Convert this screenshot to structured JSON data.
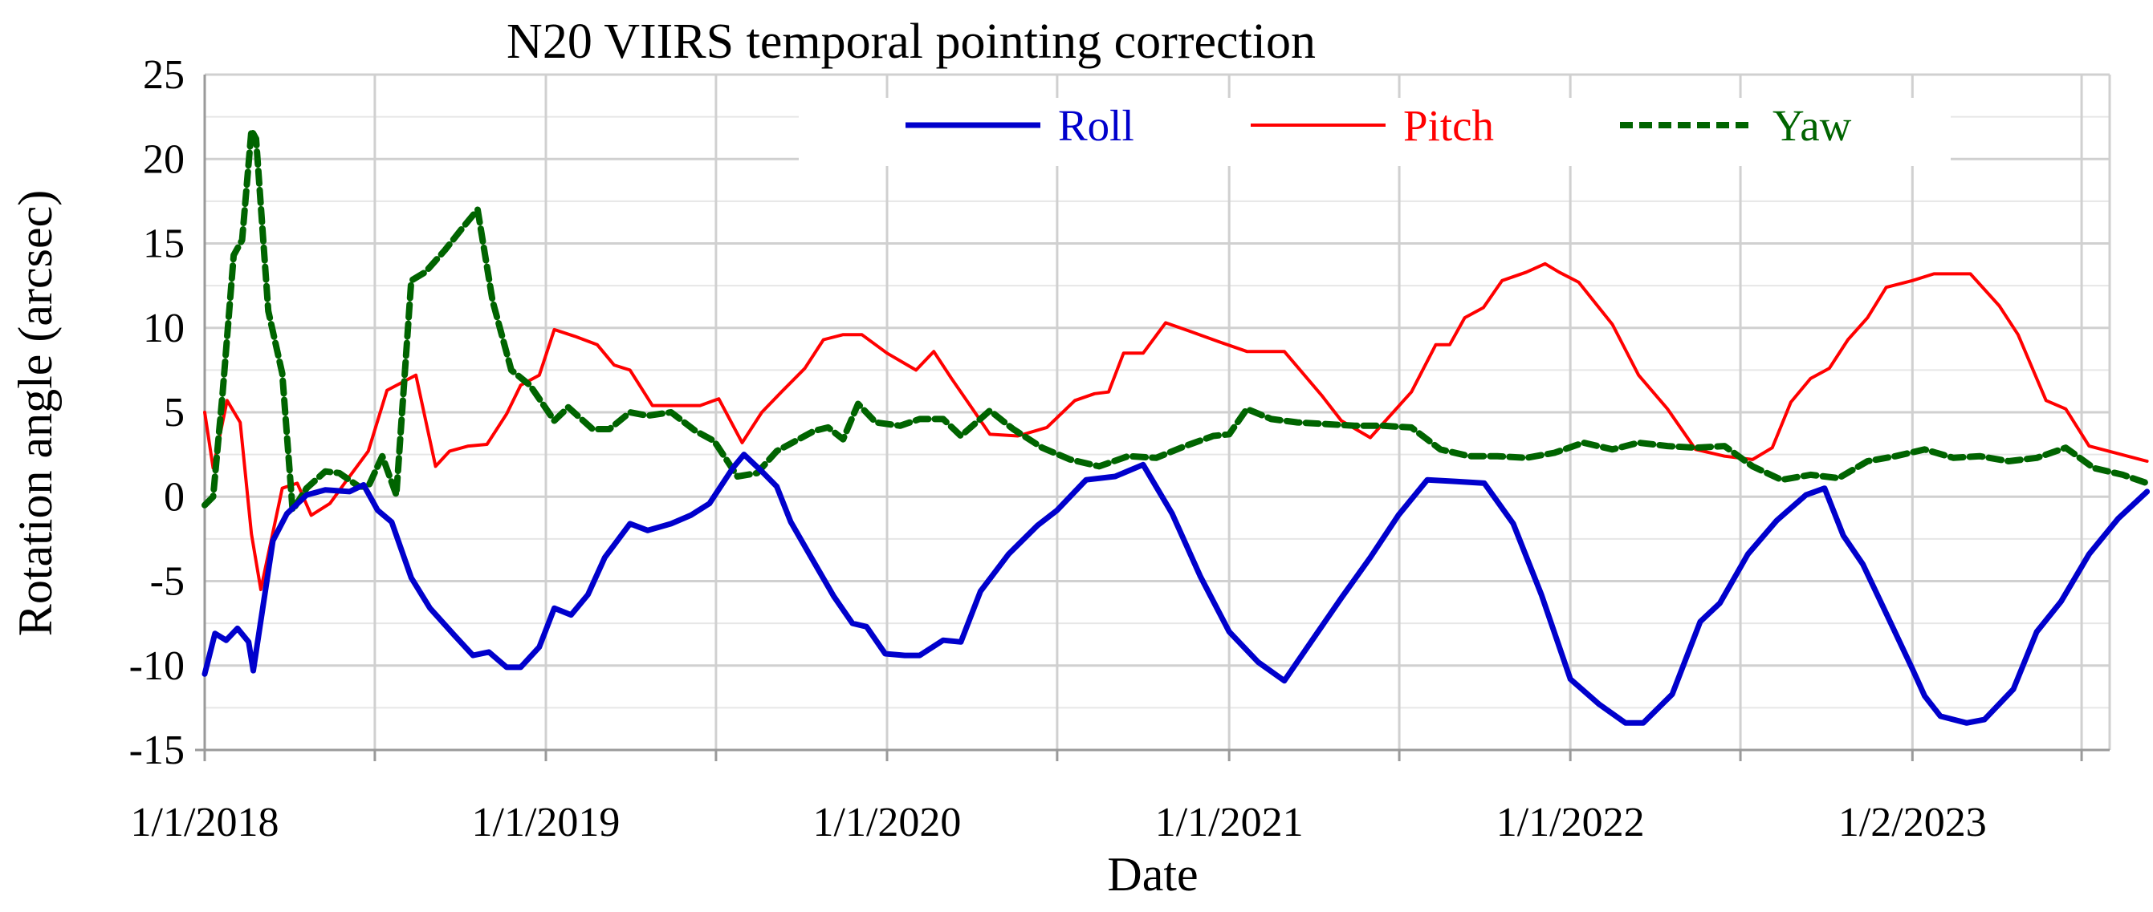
{
  "chart_data": {
    "type": "line",
    "title": "N20 VIIRS temporal pointing correction",
    "xlabel": "Date",
    "ylabel": "Rotation angle (arcsec)",
    "x_tick_labels": [
      "1/1/2018",
      "1/1/2019",
      "1/1/2020",
      "1/1/2021",
      "1/1/2022",
      "1/2/2023"
    ],
    "x_tick_dates": [
      "2018-01-01",
      "2019-01-01",
      "2020-01-01",
      "2021-01-01",
      "2022-01-01",
      "2023-01-02"
    ],
    "xlim": [
      "2018-01-01",
      "2023-07-20"
    ],
    "ylim": [
      -15,
      25
    ],
    "y_ticks": [
      -15,
      -10,
      -5,
      0,
      5,
      10,
      15,
      20,
      25
    ],
    "grid": true,
    "legend": "top, inside",
    "series": [
      {
        "name": "Roll",
        "color": "#0000CC",
        "style": "solid-thick",
        "points": [
          [
            "2018-01-01",
            -10.5
          ],
          [
            "2018-01-12",
            -8.1
          ],
          [
            "2018-01-24",
            -8.5
          ],
          [
            "2018-02-05",
            -7.8
          ],
          [
            "2018-02-17",
            -8.6
          ],
          [
            "2018-02-22",
            -10.3
          ],
          [
            "2018-03-15",
            -2.6
          ],
          [
            "2018-03-30",
            -1.0
          ],
          [
            "2018-04-20",
            0.1
          ],
          [
            "2018-05-10",
            0.4
          ],
          [
            "2018-06-05",
            0.3
          ],
          [
            "2018-06-20",
            0.7
          ],
          [
            "2018-07-05",
            -0.8
          ],
          [
            "2018-07-20",
            -1.5
          ],
          [
            "2018-08-10",
            -4.8
          ],
          [
            "2018-08-30",
            -6.6
          ],
          [
            "2018-09-25",
            -8.2
          ],
          [
            "2018-10-15",
            -9.4
          ],
          [
            "2018-11-01",
            -9.2
          ],
          [
            "2018-11-20",
            -10.1
          ],
          [
            "2018-12-05",
            -10.1
          ],
          [
            "2018-12-25",
            -8.9
          ],
          [
            "2019-01-10",
            -6.6
          ],
          [
            "2019-01-28",
            -7.0
          ],
          [
            "2019-02-15",
            -5.8
          ],
          [
            "2019-03-05",
            -3.6
          ],
          [
            "2019-04-01",
            -1.6
          ],
          [
            "2019-04-20",
            -2.0
          ],
          [
            "2019-05-15",
            -1.6
          ],
          [
            "2019-06-05",
            -1.1
          ],
          [
            "2019-06-25",
            -0.4
          ],
          [
            "2019-07-20",
            1.7
          ],
          [
            "2019-08-01",
            2.5
          ],
          [
            "2019-08-20",
            1.5
          ],
          [
            "2019-09-05",
            0.6
          ],
          [
            "2019-09-20",
            -1.5
          ],
          [
            "2019-10-15",
            -3.9
          ],
          [
            "2019-11-05",
            -5.9
          ],
          [
            "2019-11-25",
            -7.5
          ],
          [
            "2019-12-10",
            -7.7
          ],
          [
            "2019-12-30",
            -9.3
          ],
          [
            "2020-01-20",
            -9.4
          ],
          [
            "2020-02-05",
            -9.4
          ],
          [
            "2020-03-01",
            -8.5
          ],
          [
            "2020-03-20",
            -8.6
          ],
          [
            "2020-04-10",
            -5.6
          ],
          [
            "2020-05-10",
            -3.4
          ],
          [
            "2020-06-10",
            -1.7
          ],
          [
            "2020-07-01",
            -0.8
          ],
          [
            "2020-08-01",
            1.0
          ],
          [
            "2020-09-01",
            1.2
          ],
          [
            "2020-10-01",
            1.9
          ],
          [
            "2020-11-01",
            -1.0
          ],
          [
            "2020-12-01",
            -4.7
          ],
          [
            "2021-01-01",
            -8.0
          ],
          [
            "2021-02-01",
            -9.8
          ],
          [
            "2021-03-01",
            -10.9
          ],
          [
            "2021-04-01",
            -8.4
          ],
          [
            "2021-05-01",
            -6.0
          ],
          [
            "2021-06-01",
            -3.6
          ],
          [
            "2021-07-01",
            -1.1
          ],
          [
            "2021-08-01",
            1.0
          ],
          [
            "2021-09-01",
            0.9
          ],
          [
            "2021-10-01",
            0.8
          ],
          [
            "2021-11-01",
            -1.6
          ],
          [
            "2021-12-01",
            -5.8
          ],
          [
            "2022-01-01",
            -10.8
          ],
          [
            "2022-02-01",
            -12.3
          ],
          [
            "2022-03-01",
            -13.4
          ],
          [
            "2022-03-20",
            -13.4
          ],
          [
            "2022-04-20",
            -11.7
          ],
          [
            "2022-05-20",
            -7.4
          ],
          [
            "2022-06-10",
            -6.3
          ],
          [
            "2022-07-10",
            -3.4
          ],
          [
            "2022-08-10",
            -1.4
          ],
          [
            "2022-09-10",
            0.1
          ],
          [
            "2022-09-30",
            0.5
          ],
          [
            "2022-10-20",
            -2.3
          ],
          [
            "2022-11-10",
            -4.0
          ],
          [
            "2022-12-10",
            -7.5
          ],
          [
            "2023-01-02",
            -10.2
          ],
          [
            "2023-01-15",
            -11.8
          ],
          [
            "2023-02-01",
            -13.0
          ],
          [
            "2023-03-01",
            -13.4
          ],
          [
            "2023-03-20",
            -13.2
          ],
          [
            "2023-04-20",
            -11.4
          ],
          [
            "2023-05-15",
            -8.0
          ],
          [
            "2023-06-10",
            -6.2
          ],
          [
            "2023-07-10",
            -3.4
          ],
          [
            "2023-08-10",
            -1.3
          ],
          [
            "2023-09-10",
            0.3
          ]
        ]
      },
      {
        "name": "Pitch",
        "color": "#FF0000",
        "style": "solid-thin",
        "points": [
          [
            "2018-01-01",
            5.0
          ],
          [
            "2018-01-10",
            1.7
          ],
          [
            "2018-01-25",
            5.7
          ],
          [
            "2018-02-08",
            4.4
          ],
          [
            "2018-02-20",
            -2.2
          ],
          [
            "2018-03-02",
            -5.5
          ],
          [
            "2018-03-25",
            0.5
          ],
          [
            "2018-04-10",
            0.8
          ],
          [
            "2018-04-25",
            -1.1
          ],
          [
            "2018-05-15",
            -0.4
          ],
          [
            "2018-06-01",
            0.9
          ],
          [
            "2018-06-25",
            2.7
          ],
          [
            "2018-07-15",
            6.3
          ],
          [
            "2018-08-15",
            7.2
          ],
          [
            "2018-09-05",
            1.8
          ],
          [
            "2018-09-20",
            2.7
          ],
          [
            "2018-10-10",
            3.0
          ],
          [
            "2018-10-30",
            3.1
          ],
          [
            "2018-11-20",
            4.9
          ],
          [
            "2018-12-05",
            6.6
          ],
          [
            "2018-12-25",
            7.2
          ],
          [
            "2019-01-10",
            9.9
          ],
          [
            "2019-02-01",
            9.5
          ],
          [
            "2019-02-25",
            9.0
          ],
          [
            "2019-03-15",
            7.8
          ],
          [
            "2019-04-01",
            7.5
          ],
          [
            "2019-04-25",
            5.4
          ],
          [
            "2019-05-20",
            5.4
          ],
          [
            "2019-06-15",
            5.4
          ],
          [
            "2019-07-05",
            5.8
          ],
          [
            "2019-07-30",
            3.2
          ],
          [
            "2019-08-20",
            5.0
          ],
          [
            "2019-09-10",
            6.2
          ],
          [
            "2019-10-05",
            7.6
          ],
          [
            "2019-10-25",
            9.3
          ],
          [
            "2019-11-15",
            9.6
          ],
          [
            "2019-12-05",
            9.6
          ],
          [
            "2020-01-01",
            8.5
          ],
          [
            "2020-02-01",
            7.5
          ],
          [
            "2020-02-20",
            8.6
          ],
          [
            "2020-03-10",
            7.0
          ],
          [
            "2020-03-30",
            5.4
          ],
          [
            "2020-04-20",
            3.7
          ],
          [
            "2020-05-20",
            3.6
          ],
          [
            "2020-06-20",
            4.1
          ],
          [
            "2020-07-20",
            5.7
          ],
          [
            "2020-08-10",
            6.1
          ],
          [
            "2020-08-25",
            6.2
          ],
          [
            "2020-09-10",
            8.5
          ],
          [
            "2020-10-01",
            8.5
          ],
          [
            "2020-10-25",
            10.3
          ],
          [
            "2020-11-20",
            9.8
          ],
          [
            "2020-12-20",
            9.2
          ],
          [
            "2021-01-20",
            8.6
          ],
          [
            "2021-03-01",
            8.6
          ],
          [
            "2021-04-10",
            6.0
          ],
          [
            "2021-05-01",
            4.5
          ],
          [
            "2021-06-01",
            3.5
          ],
          [
            "2021-07-15",
            6.2
          ],
          [
            "2021-08-10",
            9.0
          ],
          [
            "2021-08-25",
            9.0
          ],
          [
            "2021-09-10",
            10.6
          ],
          [
            "2021-09-30",
            11.2
          ],
          [
            "2021-10-20",
            12.8
          ],
          [
            "2021-11-15",
            13.3
          ],
          [
            "2021-12-05",
            13.8
          ],
          [
            "2021-12-20",
            13.3
          ],
          [
            "2022-01-10",
            12.7
          ],
          [
            "2022-02-15",
            10.2
          ],
          [
            "2022-03-15",
            7.2
          ],
          [
            "2022-04-15",
            5.2
          ],
          [
            "2022-05-15",
            2.8
          ],
          [
            "2022-06-15",
            2.4
          ],
          [
            "2022-07-15",
            2.2
          ],
          [
            "2022-08-05",
            2.9
          ],
          [
            "2022-08-25",
            5.6
          ],
          [
            "2022-09-15",
            7.0
          ],
          [
            "2022-10-05",
            7.6
          ],
          [
            "2022-10-25",
            9.3
          ],
          [
            "2022-11-15",
            10.6
          ],
          [
            "2022-12-05",
            12.4
          ],
          [
            "2023-01-02",
            12.8
          ],
          [
            "2023-01-25",
            13.2
          ],
          [
            "2023-02-15",
            13.2
          ],
          [
            "2023-03-05",
            13.2
          ],
          [
            "2023-04-05",
            11.3
          ],
          [
            "2023-04-25",
            9.6
          ],
          [
            "2023-05-25",
            5.7
          ],
          [
            "2023-06-15",
            5.2
          ],
          [
            "2023-07-10",
            3.0
          ],
          [
            "2023-09-10",
            2.1
          ]
        ]
      },
      {
        "name": "Yaw",
        "color": "#006400",
        "style": "dashed-thick",
        "points": [
          [
            "2018-01-01",
            -0.5
          ],
          [
            "2018-01-10",
            0.0
          ],
          [
            "2018-01-20",
            6.0
          ],
          [
            "2018-02-01",
            14.3
          ],
          [
            "2018-02-10",
            15.2
          ],
          [
            "2018-02-20",
            21.7
          ],
          [
            "2018-02-25",
            21.2
          ],
          [
            "2018-03-10",
            11.0
          ],
          [
            "2018-03-25",
            7.3
          ],
          [
            "2018-04-05",
            -0.8
          ],
          [
            "2018-04-20",
            0.5
          ],
          [
            "2018-05-10",
            1.5
          ],
          [
            "2018-05-25",
            1.4
          ],
          [
            "2018-06-15",
            0.6
          ],
          [
            "2018-06-25",
            0.6
          ],
          [
            "2018-07-10",
            2.4
          ],
          [
            "2018-07-25",
            0.1
          ],
          [
            "2018-08-10",
            12.8
          ],
          [
            "2018-08-25",
            13.3
          ],
          [
            "2018-09-15",
            14.6
          ],
          [
            "2018-10-05",
            16.0
          ],
          [
            "2018-10-20",
            17.0
          ],
          [
            "2018-11-05",
            11.6
          ],
          [
            "2018-11-25",
            7.5
          ],
          [
            "2018-12-15",
            6.6
          ],
          [
            "2019-01-10",
            4.5
          ],
          [
            "2019-01-25",
            5.3
          ],
          [
            "2019-02-20",
            4.0
          ],
          [
            "2019-03-10",
            4.0
          ],
          [
            "2019-04-01",
            5.0
          ],
          [
            "2019-04-20",
            4.8
          ],
          [
            "2019-05-15",
            5.0
          ],
          [
            "2019-06-10",
            3.9
          ],
          [
            "2019-06-30",
            3.3
          ],
          [
            "2019-07-25",
            1.2
          ],
          [
            "2019-08-15",
            1.4
          ],
          [
            "2019-09-05",
            2.7
          ],
          [
            "2019-09-25",
            3.3
          ],
          [
            "2019-10-15",
            3.9
          ],
          [
            "2019-10-30",
            4.1
          ],
          [
            "2019-11-15",
            3.4
          ],
          [
            "2019-12-01",
            5.5
          ],
          [
            "2019-12-20",
            4.4
          ],
          [
            "2020-01-15",
            4.2
          ],
          [
            "2020-02-05",
            4.6
          ],
          [
            "2020-03-01",
            4.6
          ],
          [
            "2020-03-20",
            3.6
          ],
          [
            "2020-04-20",
            5.1
          ],
          [
            "2020-05-15",
            4.0
          ],
          [
            "2020-06-15",
            2.9
          ],
          [
            "2020-07-15",
            2.2
          ],
          [
            "2020-08-15",
            1.8
          ],
          [
            "2020-09-15",
            2.4
          ],
          [
            "2020-10-15",
            2.3
          ],
          [
            "2020-11-15",
            3.0
          ],
          [
            "2020-12-15",
            3.6
          ],
          [
            "2021-01-01",
            3.7
          ],
          [
            "2021-01-20",
            5.2
          ],
          [
            "2021-02-15",
            4.6
          ],
          [
            "2021-03-15",
            4.4
          ],
          [
            "2021-04-15",
            4.3
          ],
          [
            "2021-05-15",
            4.2
          ],
          [
            "2021-06-15",
            4.2
          ],
          [
            "2021-07-15",
            4.1
          ],
          [
            "2021-08-15",
            2.8
          ],
          [
            "2021-09-15",
            2.4
          ],
          [
            "2021-10-15",
            2.4
          ],
          [
            "2021-11-15",
            2.3
          ],
          [
            "2021-12-15",
            2.6
          ],
          [
            "2022-01-15",
            3.2
          ],
          [
            "2022-02-15",
            2.8
          ],
          [
            "2022-03-15",
            3.2
          ],
          [
            "2022-04-15",
            3.0
          ],
          [
            "2022-05-15",
            2.9
          ],
          [
            "2022-06-15",
            3.0
          ],
          [
            "2022-07-15",
            1.8
          ],
          [
            "2022-08-15",
            1.0
          ],
          [
            "2022-09-15",
            1.3
          ],
          [
            "2022-10-15",
            1.1
          ],
          [
            "2022-11-15",
            2.1
          ],
          [
            "2022-12-15",
            2.4
          ],
          [
            "2023-01-15",
            2.8
          ],
          [
            "2023-02-15",
            2.3
          ],
          [
            "2023-03-15",
            2.4
          ],
          [
            "2023-04-15",
            2.1
          ],
          [
            "2023-05-15",
            2.3
          ],
          [
            "2023-06-15",
            2.9
          ],
          [
            "2023-07-15",
            1.7
          ],
          [
            "2023-08-15",
            1.3
          ],
          [
            "2023-09-10",
            0.8
          ]
        ]
      }
    ]
  }
}
